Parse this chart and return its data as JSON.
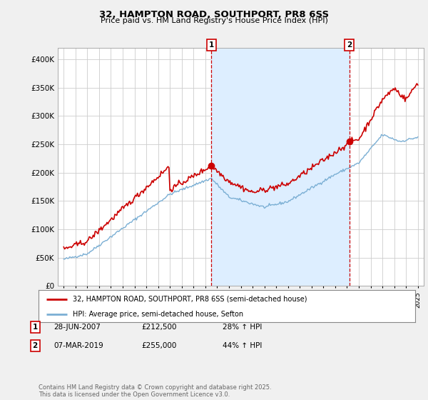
{
  "title": "32, HAMPTON ROAD, SOUTHPORT, PR8 6SS",
  "subtitle": "Price paid vs. HM Land Registry's House Price Index (HPI)",
  "legend_line1": "32, HAMPTON ROAD, SOUTHPORT, PR8 6SS (semi-detached house)",
  "legend_line2": "HPI: Average price, semi-detached house, Sefton",
  "footnote": "Contains HM Land Registry data © Crown copyright and database right 2025.\nThis data is licensed under the Open Government Licence v3.0.",
  "purchase1_date": "28-JUN-2007",
  "purchase1_price": "£212,500",
  "purchase1_hpi": "28% ↑ HPI",
  "purchase2_date": "07-MAR-2019",
  "purchase2_price": "£255,000",
  "purchase2_hpi": "44% ↑ HPI",
  "red_color": "#cc0000",
  "blue_color": "#7bafd4",
  "shade_color": "#ddeeff",
  "background_color": "#f0f0f0",
  "plot_bg_color": "#ffffff",
  "ylim": [
    0,
    420000
  ],
  "yticks": [
    0,
    50000,
    100000,
    150000,
    200000,
    250000,
    300000,
    350000,
    400000
  ],
  "purchase1_year": 2007.5,
  "purchase2_year": 2019.2,
  "xmin": 1994.5,
  "xmax": 2025.5
}
